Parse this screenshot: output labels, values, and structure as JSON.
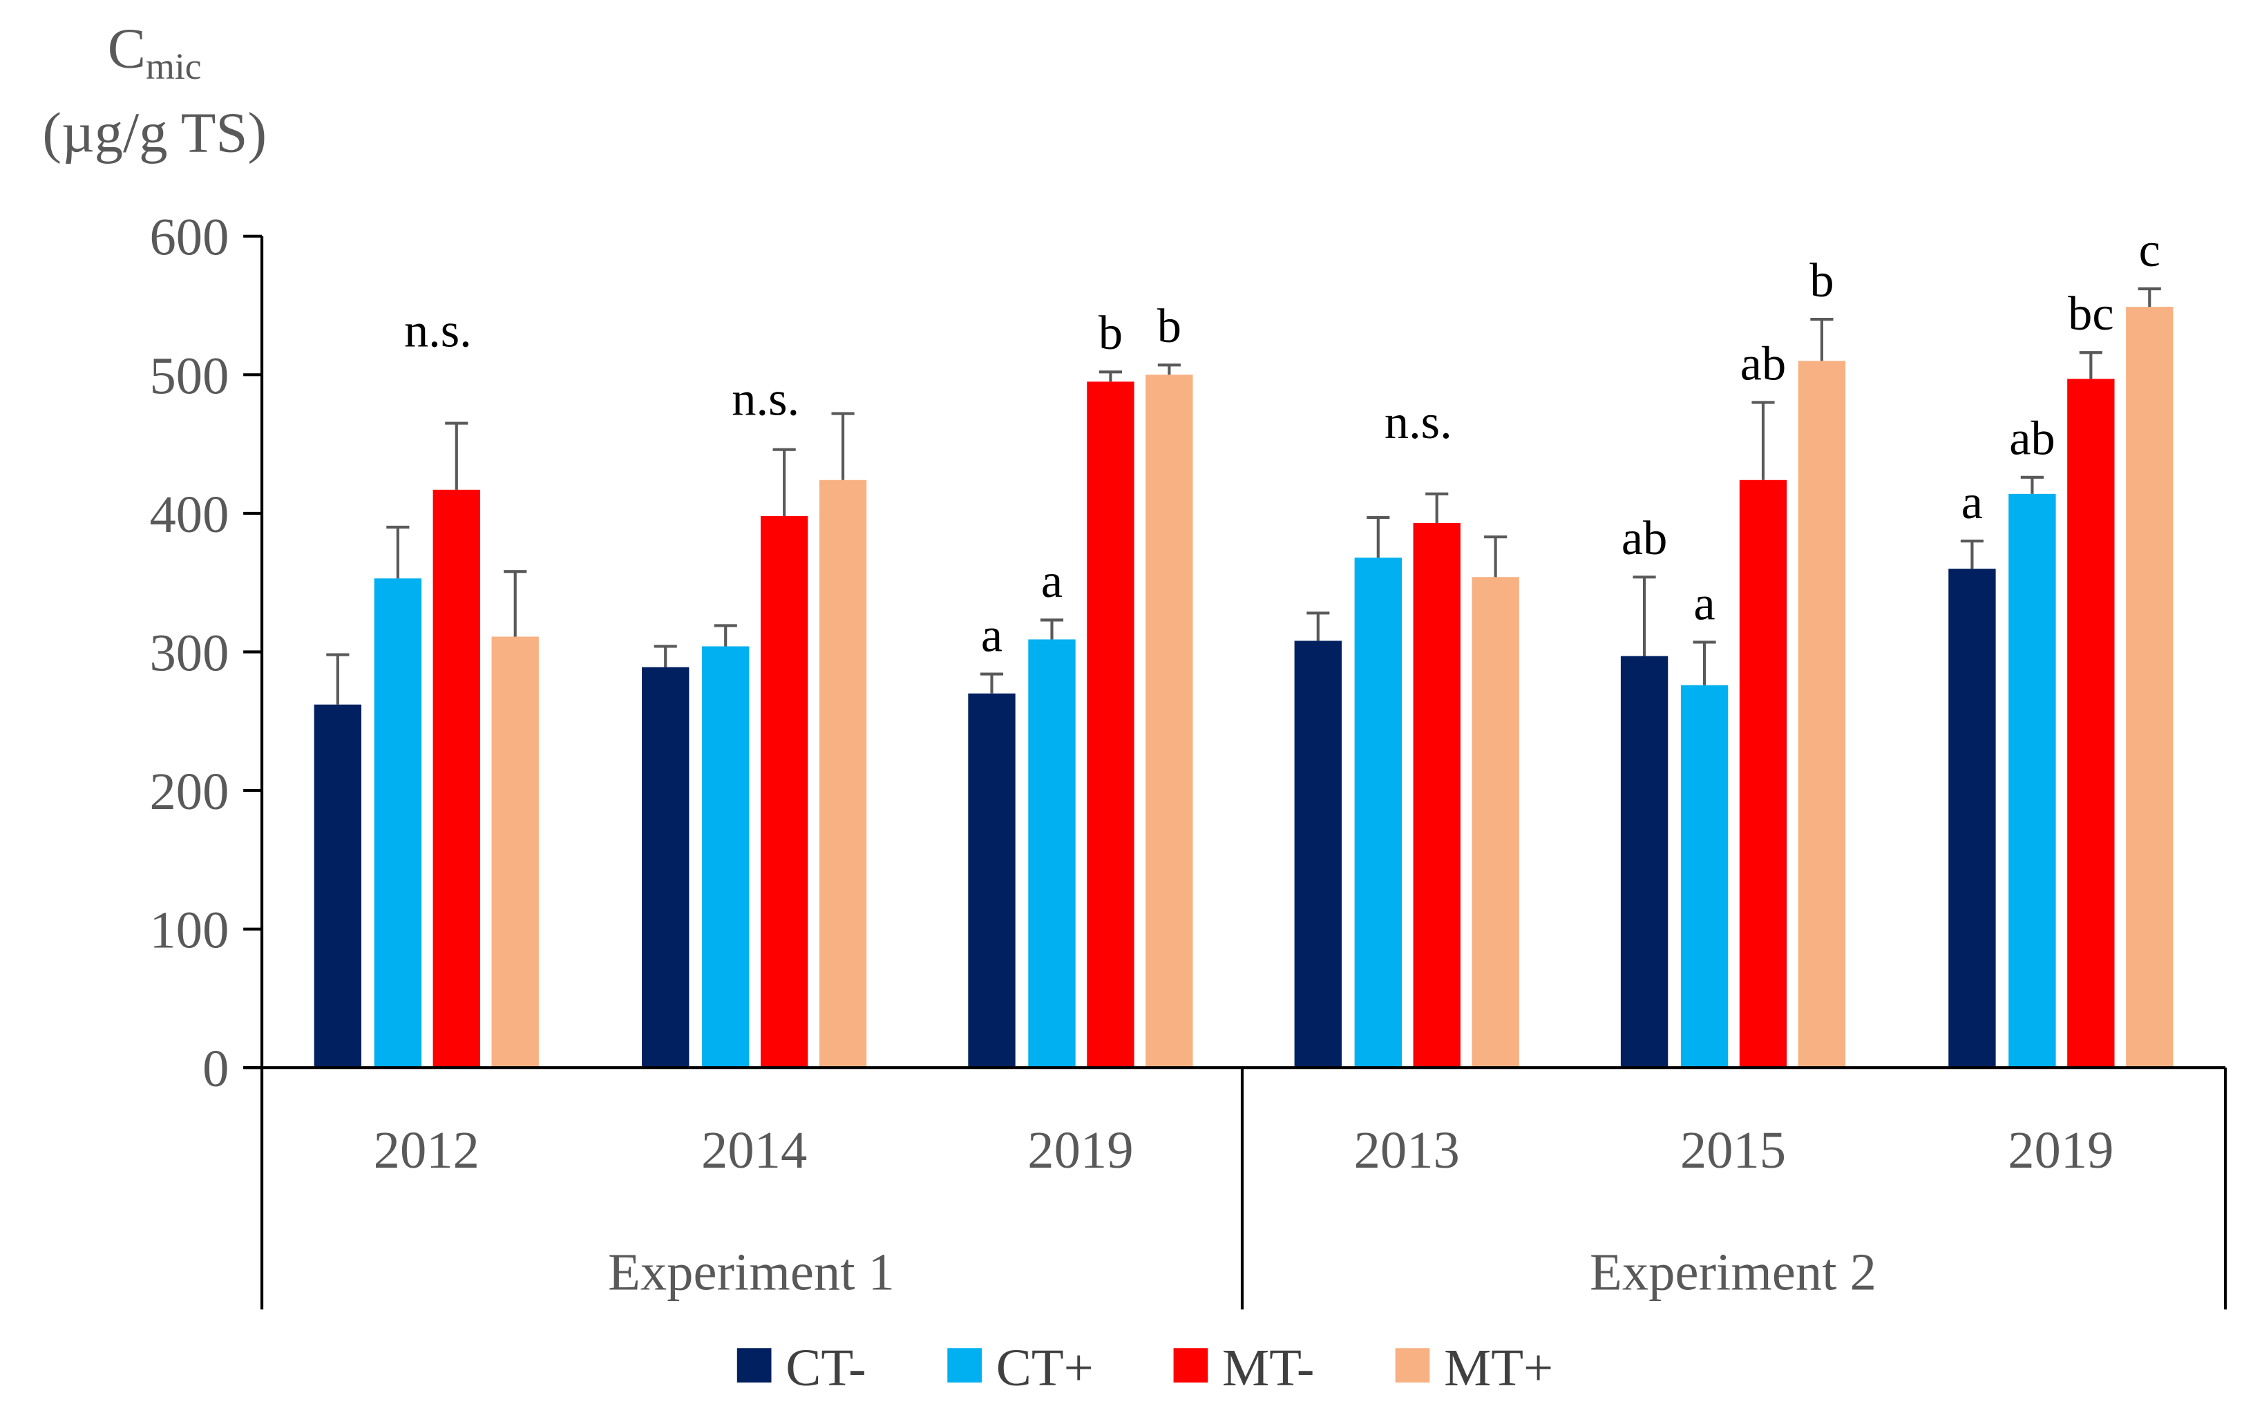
{
  "chart_data": {
    "type": "bar",
    "title": "",
    "ylabel": "Cmic (µg/g TS)",
    "ylabel_main": "C",
    "ylabel_sub": "mic",
    "ylabel_unit": "(µg/g TS)",
    "ylim": [
      0,
      600
    ],
    "yticks": [
      "0",
      "100",
      "200",
      "300",
      "400",
      "500",
      "600"
    ],
    "grid": false,
    "legend_placement": "bottom",
    "groups": [
      {
        "label": "Experiment 1",
        "categories": [
          "2012",
          "2014",
          "2019"
        ]
      },
      {
        "label": "Experiment 2",
        "categories": [
          "2013",
          "2015",
          "2019"
        ]
      }
    ],
    "categories": [
      "2012",
      "2014",
      "2019",
      "2013",
      "2015",
      "2019"
    ],
    "series": [
      {
        "name": "CT-",
        "color": "#002060",
        "values": [
          262,
          289,
          270,
          308,
          297,
          360
        ],
        "error": [
          36,
          15,
          14,
          20,
          57,
          20
        ],
        "letters": [
          "",
          "",
          "a",
          "",
          "ab",
          "a"
        ]
      },
      {
        "name": "CT+",
        "color": "#00B0F0",
        "values": [
          353,
          304,
          309,
          368,
          276,
          414
        ],
        "error": [
          37,
          15,
          14,
          29,
          31,
          12
        ],
        "letters": [
          "",
          "",
          "a",
          "",
          "a",
          "ab"
        ]
      },
      {
        "name": "MT-",
        "color": "#FF0000",
        "values": [
          417,
          398,
          495,
          393,
          424,
          497
        ],
        "error": [
          48,
          48,
          7,
          21,
          56,
          19
        ],
        "letters": [
          "",
          "",
          "b",
          "",
          "ab",
          "bc"
        ]
      },
      {
        "name": "MT+",
        "color": "#F8B183",
        "values": [
          311,
          424,
          500,
          354,
          510,
          549
        ],
        "error": [
          47,
          48,
          7,
          29,
          30,
          13
        ],
        "letters": [
          "",
          "",
          "b",
          "",
          "b",
          "c"
        ]
      }
    ],
    "group_annotations": [
      "n.s.",
      "n.s.",
      "",
      "n.s.",
      "",
      ""
    ],
    "error_bar_color": "#595959"
  }
}
